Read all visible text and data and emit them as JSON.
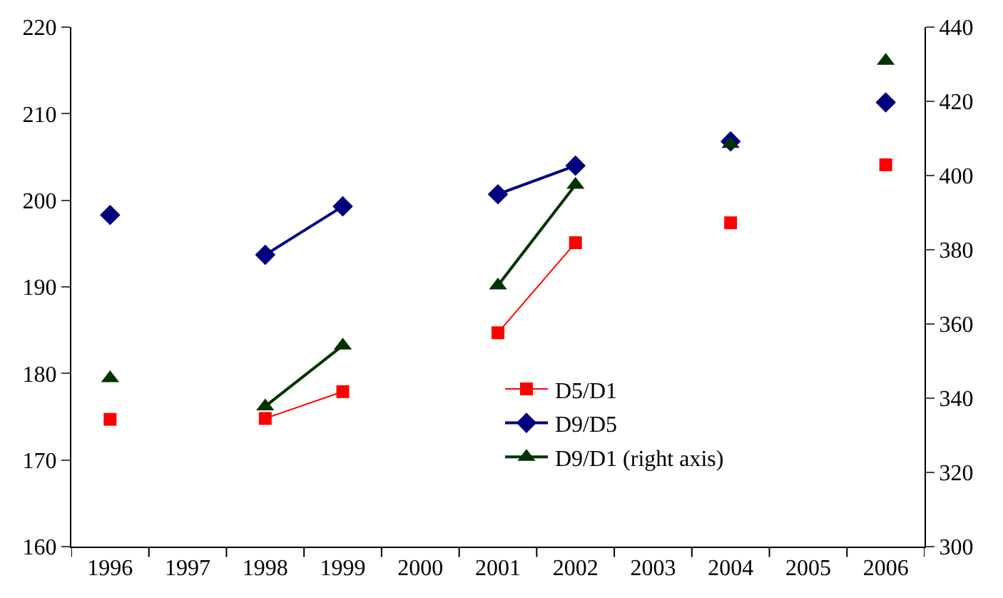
{
  "chart_data": {
    "type": "line",
    "categories": [
      "1996",
      "1997",
      "1998",
      "1999",
      "2000",
      "2001",
      "2002",
      "2003",
      "2004",
      "2005",
      "2006"
    ],
    "series": [
      {
        "name": "D5/D1",
        "color": "#ff0000",
        "marker": "square",
        "values": [
          174.7,
          null,
          174.8,
          177.9,
          null,
          184.7,
          195.1,
          null,
          197.4,
          null,
          204.1
        ]
      },
      {
        "name": "D9/D5",
        "color": "#000080",
        "marker": "diamond",
        "values": [
          198.3,
          null,
          193.7,
          199.3,
          null,
          200.7,
          204.0,
          null,
          206.8,
          null,
          211.3
        ]
      },
      {
        "name": "D9/D1 (right axis)",
        "color": "#003300",
        "marker": "triangle",
        "axis": "y2",
        "values": [
          345.4,
          null,
          337.8,
          354.2,
          null,
          370.4,
          397.5,
          null,
          408.5,
          null,
          430.9
        ]
      }
    ],
    "ylim": [
      160,
      220
    ],
    "yticks": [
      160,
      170,
      180,
      190,
      200,
      210,
      220
    ],
    "y2lim": [
      300,
      440
    ],
    "y2ticks": [
      300,
      320,
      340,
      360,
      380,
      400,
      420,
      440
    ],
    "legend": "bottom right"
  }
}
